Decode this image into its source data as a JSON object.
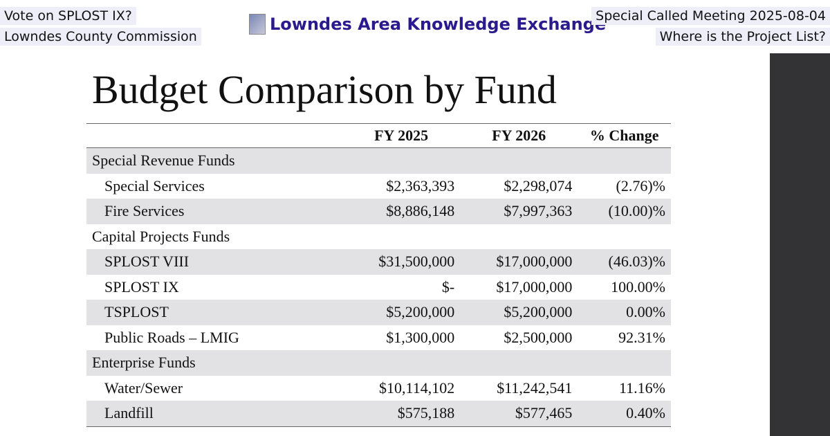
{
  "header": {
    "top_left": [
      "Vote on SPLOST IX?",
      "Lowndes County Commission"
    ],
    "center": "Lowndes Area Knowledge Exchange",
    "top_right": [
      "Special Called Meeting 2025-08-04",
      "Where is the Project List?"
    ]
  },
  "slide": {
    "title": "Budget Comparison by Fund",
    "table": {
      "columns": [
        "FY 2025",
        "FY 2026",
        "% Change"
      ],
      "rows": [
        [
          "Special Revenue Funds"
        ],
        [
          "Special Services",
          "$2,363,393",
          "$2,298,074",
          "(2.76)%"
        ],
        [
          "Fire Services",
          "$8,886,148",
          "$7,997,363",
          "(10.00)%"
        ],
        [
          "Capital Projects Funds"
        ],
        [
          "SPLOST VIII",
          "$31,500,000",
          "$17,000,000",
          "(46.03)%"
        ],
        [
          "SPLOST IX",
          "$-",
          "$17,000,000",
          "100.00%"
        ],
        [
          "TSPLOST",
          "$5,200,000",
          "$5,200,000",
          "0.00%"
        ],
        [
          "Public Roads – LMIG",
          "$1,300,000",
          "$2,500,000",
          "92.31%"
        ],
        [
          "Enterprise Funds"
        ],
        [
          "Water/Sewer",
          "$10,114,102",
          "$11,242,541",
          "11.16%"
        ],
        [
          "Landfill",
          "$575,188",
          "$577,465",
          "0.40%"
        ]
      ]
    }
  }
}
